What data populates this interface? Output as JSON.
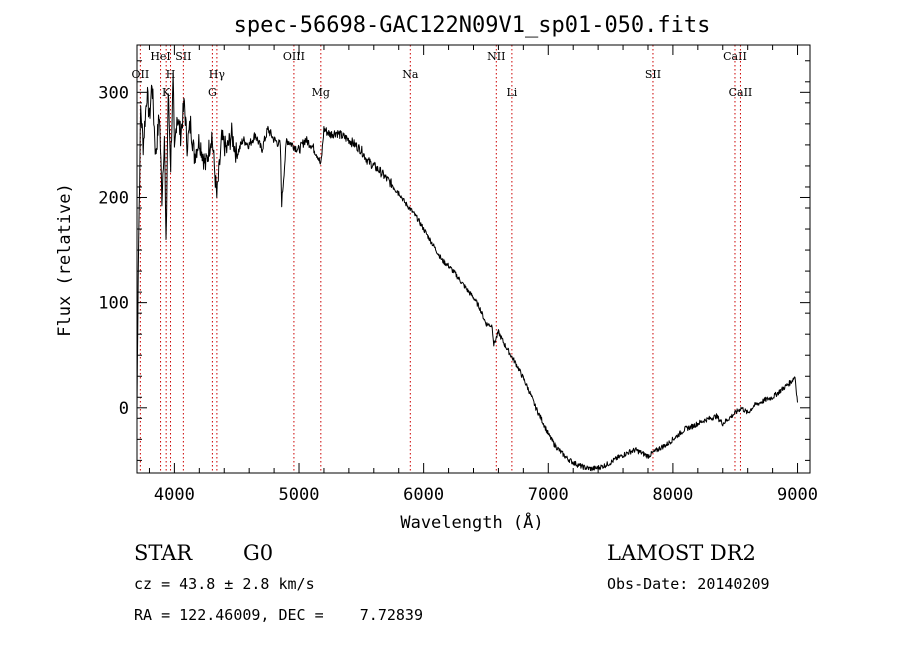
{
  "title": "spec-56698-GAC122N09V1_sp01-050.fits",
  "info": {
    "class_label": "STAR",
    "subclass": "G0",
    "survey": "LAMOST DR2",
    "cz_text": "cz = 43.8 ± 2.8 km/s",
    "obs_date_text": "Obs-Date: 20140209",
    "radec_text": "RA = 122.46009, DEC =    7.72839"
  },
  "chart_data": {
    "type": "line",
    "title": "spec-56698-GAC122N09V1_sp01-050.fits",
    "xlabel": "Wavelength (Å)",
    "ylabel": "Flux (relative)",
    "xlim": [
      3700,
      9100
    ],
    "ylim": [
      -62,
      345
    ],
    "xticks": [
      4000,
      5000,
      6000,
      7000,
      8000,
      9000
    ],
    "yticks": [
      0,
      100,
      200,
      300
    ],
    "ytick_labels": [
      "0",
      "100",
      "200",
      "300"
    ],
    "grid": false,
    "series": [
      {
        "color": "#000000",
        "x": [
          3700,
          3710,
          3730,
          3750,
          3780,
          3800,
          3820,
          3850,
          3880,
          3900,
          3920,
          3933,
          3950,
          3970,
          3990,
          4000,
          4020,
          4050,
          4080,
          4102,
          4130,
          4160,
          4200,
          4250,
          4300,
          4340,
          4380,
          4420,
          4460,
          4500,
          4550,
          4600,
          4650,
          4700,
          4750,
          4800,
          4850,
          4861,
          4900,
          4950,
          5000,
          5050,
          5100,
          5150,
          5175,
          5200,
          5250,
          5300,
          5350,
          5400,
          5450,
          5500,
          5550,
          5600,
          5650,
          5700,
          5750,
          5800,
          5850,
          5900,
          5950,
          6000,
          6050,
          6100,
          6150,
          6200,
          6250,
          6300,
          6350,
          6400,
          6450,
          6500,
          6550,
          6563,
          6600,
          6650,
          6700,
          6750,
          6800,
          6850,
          6900,
          6950,
          7000,
          7050,
          7100,
          7150,
          7200,
          7250,
          7300,
          7350,
          7400,
          7450,
          7500,
          7550,
          7600,
          7650,
          7700,
          7750,
          7800,
          7850,
          7900,
          7950,
          8000,
          8050,
          8100,
          8150,
          8200,
          8250,
          8300,
          8350,
          8400,
          8450,
          8500,
          8550,
          8600,
          8650,
          8700,
          8750,
          8800,
          8850,
          8900,
          8950,
          8980,
          9000
        ],
        "y": [
          0,
          130,
          285,
          250,
          300,
          275,
          310,
          240,
          280,
          200,
          260,
          150,
          300,
          230,
          310,
          240,
          280,
          260,
          290,
          250,
          270,
          240,
          255,
          230,
          260,
          200,
          255,
          245,
          260,
          240,
          255,
          250,
          260,
          245,
          265,
          255,
          250,
          195,
          255,
          250,
          245,
          255,
          250,
          240,
          230,
          265,
          260,
          262,
          258,
          255,
          250,
          245,
          235,
          230,
          225,
          218,
          212,
          205,
          195,
          188,
          180,
          170,
          160,
          150,
          140,
          135,
          128,
          120,
          112,
          105,
          95,
          80,
          78,
          60,
          72,
          60,
          50,
          40,
          28,
          15,
          0,
          -12,
          -25,
          -35,
          -42,
          -48,
          -52,
          -55,
          -57,
          -58,
          -57,
          -55,
          -52,
          -48,
          -45,
          -42,
          -40,
          -43,
          -46,
          -42,
          -38,
          -35,
          -30,
          -25,
          -20,
          -18,
          -15,
          -12,
          -10,
          -8,
          -15,
          -10,
          -5,
          0,
          -5,
          2,
          5,
          8,
          10,
          15,
          20,
          25,
          30,
          5
        ]
      }
    ],
    "line_markers": [
      {
        "label": "OII",
        "x": 3727,
        "row": 1
      },
      {
        "label": "HeI",
        "x": 3889,
        "row": 0
      },
      {
        "label": "K",
        "x": 3934,
        "row": 2
      },
      {
        "label": "H",
        "x": 3969,
        "row": 1
      },
      {
        "label": "SII",
        "x": 4072,
        "row": 0
      },
      {
        "label": "Hγ",
        "x": 4341,
        "row": 1
      },
      {
        "label": "G",
        "x": 4305,
        "row": 2
      },
      {
        "label": "OIII",
        "x": 4959,
        "row": 0
      },
      {
        "label": "Mg",
        "x": 5175,
        "row": 2
      },
      {
        "label": "Na",
        "x": 5893,
        "row": 1
      },
      {
        "label": "NII",
        "x": 6583,
        "row": 0
      },
      {
        "label": "Li",
        "x": 6708,
        "row": 2
      },
      {
        "label": "SII",
        "x": 7840,
        "row": 1
      },
      {
        "label": "CaII",
        "x": 8498,
        "row": 0
      },
      {
        "label": "CaII",
        "x": 8542,
        "row": 2
      }
    ]
  }
}
